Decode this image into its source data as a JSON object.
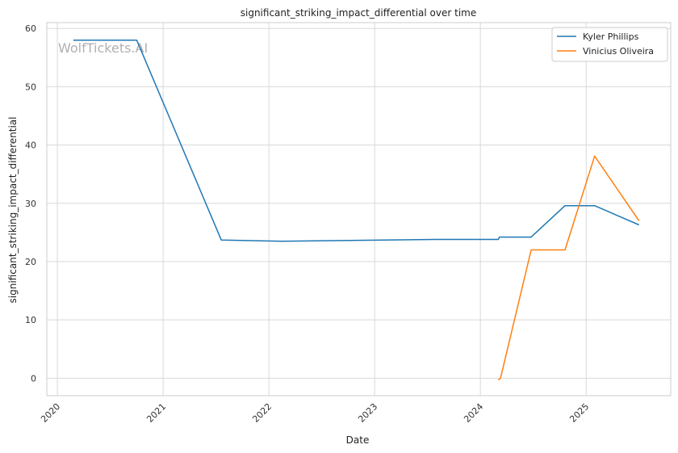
{
  "chart_data": {
    "type": "line",
    "title": "significant_striking_impact_differential over time",
    "xlabel": "Date",
    "ylabel": "significant_striking_impact_differential",
    "watermark": "WolfTickets.AI",
    "xlim": [
      2019.9,
      2025.8
    ],
    "ylim": [
      -3,
      61
    ],
    "x_ticks": [
      {
        "value": 2020,
        "label": "2020"
      },
      {
        "value": 2021,
        "label": "2021"
      },
      {
        "value": 2022,
        "label": "2022"
      },
      {
        "value": 2023,
        "label": "2023"
      },
      {
        "value": 2024,
        "label": "2024"
      },
      {
        "value": 2025,
        "label": "2025"
      }
    ],
    "y_ticks": [
      {
        "value": 0,
        "label": "0"
      },
      {
        "value": 10,
        "label": "10"
      },
      {
        "value": 20,
        "label": "20"
      },
      {
        "value": 30,
        "label": "30"
      },
      {
        "value": 40,
        "label": "40"
      },
      {
        "value": 50,
        "label": "50"
      },
      {
        "value": 60,
        "label": "60"
      }
    ],
    "grid": true,
    "legend_position": "top-right",
    "series": [
      {
        "name": "Kyler Phillips",
        "color": "#1f77b4",
        "points": [
          {
            "x": 2020.15,
            "y": 58.0
          },
          {
            "x": 2020.75,
            "y": 58.0
          },
          {
            "x": 2021.55,
            "y": 23.7
          },
          {
            "x": 2022.12,
            "y": 23.5
          },
          {
            "x": 2023.58,
            "y": 23.8
          },
          {
            "x": 2024.17,
            "y": 23.8
          },
          {
            "x": 2024.18,
            "y": 24.2
          },
          {
            "x": 2024.48,
            "y": 24.2
          },
          {
            "x": 2024.8,
            "y": 29.6
          },
          {
            "x": 2025.08,
            "y": 29.6
          },
          {
            "x": 2025.5,
            "y": 26.3
          }
        ]
      },
      {
        "name": "Vinicius Oliveira",
        "color": "#ff7f0e",
        "points": [
          {
            "x": 2024.17,
            "y": -0.3
          },
          {
            "x": 2024.19,
            "y": 0.0
          },
          {
            "x": 2024.48,
            "y": 22.0
          },
          {
            "x": 2024.8,
            "y": 22.0
          },
          {
            "x": 2025.08,
            "y": 38.1
          },
          {
            "x": 2025.5,
            "y": 27.0
          }
        ]
      }
    ]
  }
}
